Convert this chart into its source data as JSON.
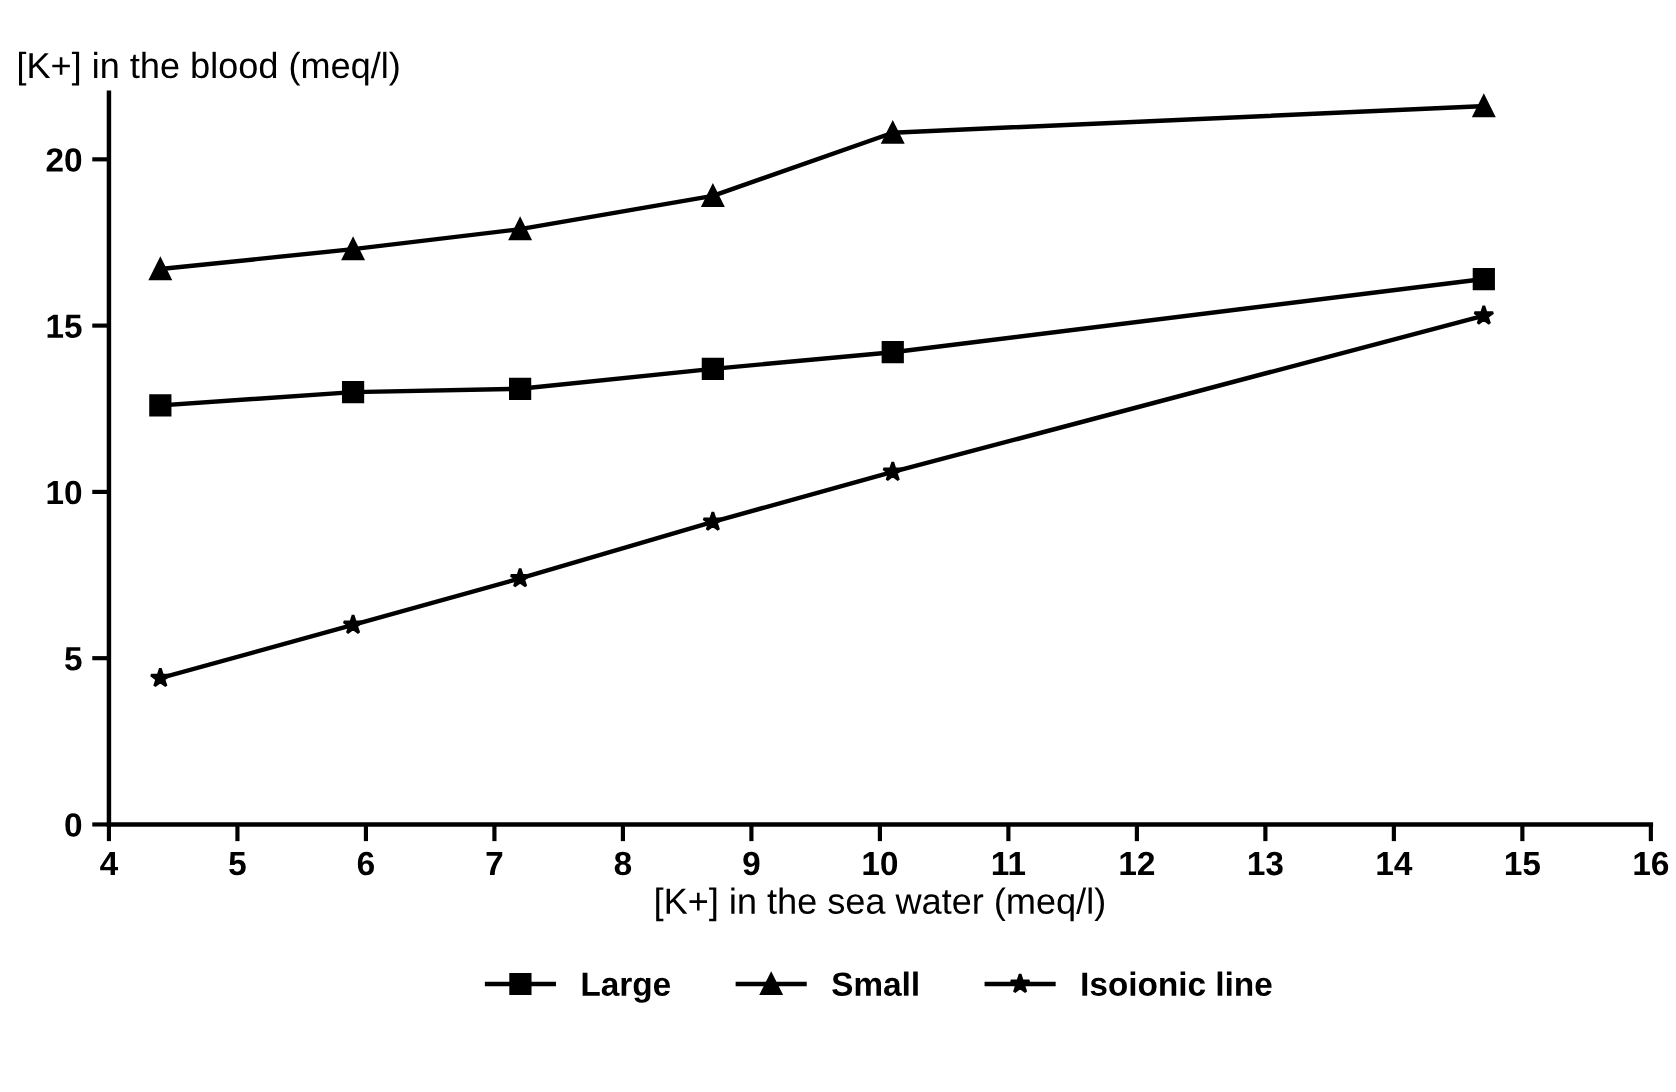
{
  "chart_data": {
    "type": "line",
    "xlabel": "[K+] in the sea water (meq/l)",
    "ylabel": "[K+] in the blood (meq/l)",
    "x": [
      4.4,
      5.9,
      7.2,
      8.7,
      10.1,
      14.7
    ],
    "series": [
      {
        "name": "Large",
        "color": "#000000",
        "marker": "square",
        "values": [
          12.6,
          13.0,
          13.1,
          13.7,
          14.2,
          16.4
        ]
      },
      {
        "name": "Small",
        "color": "#000000",
        "marker": "triangle",
        "values": [
          16.7,
          17.3,
          17.9,
          18.9,
          20.8,
          21.6
        ]
      },
      {
        "name": "Isoionic line",
        "color": "#000000",
        "marker": "star",
        "values": [
          4.4,
          6.0,
          7.4,
          9.1,
          10.6,
          15.3
        ]
      }
    ],
    "xlim": [
      4,
      16
    ],
    "xticks": [
      4,
      5,
      6,
      7,
      8,
      9,
      10,
      11,
      12,
      13,
      14,
      15,
      16
    ],
    "ylim": [
      0,
      22
    ],
    "yticks": [
      0,
      5,
      10,
      15,
      20
    ],
    "grid": false,
    "legend": "bottom",
    "line_style": "solid"
  }
}
